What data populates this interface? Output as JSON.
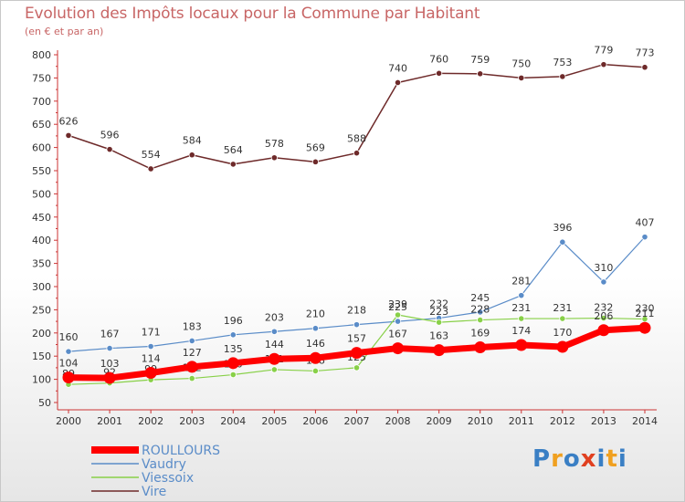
{
  "title": "Evolution des Impôts locaux pour la Commune par Habitant",
  "subtitle": "(en € et par an)",
  "logo": {
    "text": "Proxiti",
    "colors": [
      "#3a7fc4",
      "#f0a020",
      "#3a7fc4",
      "#e04020",
      "#3a7fc4",
      "#f0a020",
      "#3a7fc4"
    ]
  },
  "chart_data": {
    "type": "line",
    "x": [
      2000,
      2001,
      2002,
      2003,
      2004,
      2005,
      2006,
      2007,
      2008,
      2009,
      2010,
      2011,
      2012,
      2013,
      2014
    ],
    "ylim": [
      50,
      800
    ],
    "yticks": [
      50,
      100,
      150,
      200,
      250,
      300,
      350,
      400,
      450,
      500,
      550,
      600,
      650,
      700,
      750,
      800
    ],
    "grid": false,
    "legend_placement": "bottom-left",
    "series": [
      {
        "name": "Vire",
        "color": "#6e2a2a",
        "width": 1.5,
        "values": [
          626,
          596,
          554,
          584,
          564,
          578,
          569,
          588,
          740,
          760,
          759,
          750,
          753,
          779,
          773
        ],
        "labels": [
          "626",
          "596",
          "554",
          "584",
          "564",
          "578",
          "569",
          "588",
          "740",
          "760",
          "759",
          "750",
          "753",
          "779",
          "773"
        ]
      },
      {
        "name": "Vaudry",
        "color": "#5a8cc8",
        "width": 1.2,
        "values": [
          160,
          167,
          171,
          183,
          196,
          203,
          210,
          218,
          225,
          232,
          245,
          281,
          396,
          310,
          407
        ],
        "labels": [
          "160",
          "167",
          "171",
          "183",
          "196",
          "203",
          "210",
          "218",
          "225",
          "232",
          "245",
          "281",
          "396",
          "310",
          "407"
        ]
      },
      {
        "name": "Viessoix",
        "color": "#88d048",
        "width": 1.2,
        "values": [
          89,
          92,
          99,
          102,
          110,
          121,
          118,
          125,
          239,
          223,
          228,
          231,
          231,
          232,
          230
        ],
        "labels": [
          "89",
          "92",
          "99",
          "102",
          "110",
          "121",
          "118",
          "125",
          "239",
          "223",
          "228",
          "231",
          "231",
          "232",
          "230"
        ]
      },
      {
        "name": "ROULLOURS",
        "color": "#ff0000",
        "width": 7,
        "values": [
          104,
          103,
          114,
          127,
          135,
          144,
          146,
          157,
          167,
          163,
          169,
          174,
          170,
          206,
          211
        ],
        "labels": [
          "104",
          "103",
          "114",
          "127",
          "135",
          "144",
          "146",
          "157",
          "167",
          "163",
          "169",
          "174",
          "170",
          "206",
          "211"
        ]
      }
    ],
    "legend_order": [
      "ROULLOURS",
      "Vaudry",
      "Viessoix",
      "Vire"
    ]
  }
}
